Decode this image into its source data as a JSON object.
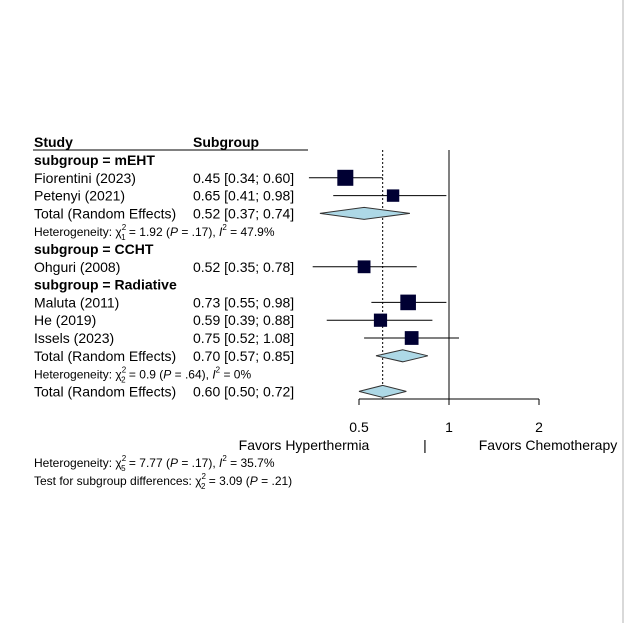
{
  "chart_data": {
    "type": "forest",
    "headers": {
      "study": "Study",
      "subgroup": "Subgroup"
    },
    "x_scale": "log",
    "x_ticks": [
      0.5,
      1,
      2
    ],
    "x_tick_labels": [
      "0.5",
      "1",
      "2"
    ],
    "null_line": 1,
    "overall_line": 0.6,
    "favors_left": "Favors Hyperthermia",
    "favors_separator": "|",
    "favors_right": "Favors Chemotherapy",
    "rows": [
      {
        "kind": "group",
        "label": "subgroup = mEHT"
      },
      {
        "kind": "study",
        "label": "Fiorentini (2023)",
        "est": 0.45,
        "lo": 0.34,
        "hi": 0.6,
        "ci_text": "0.45 [0.34; 0.60]",
        "weight": 1.0
      },
      {
        "kind": "study",
        "label": "Petenyi (2021)",
        "est": 0.65,
        "lo": 0.41,
        "hi": 0.98,
        "ci_text": "0.65 [0.41; 0.98]",
        "weight": 0.55
      },
      {
        "kind": "pooled",
        "label": "Total (Random Effects)",
        "est": 0.52,
        "lo": 0.37,
        "hi": 0.74,
        "ci_text": "0.52 [0.37; 0.74]"
      },
      {
        "kind": "het",
        "pre": "Heterogeneity: χ",
        "sub": "1",
        "sup": "2",
        "post": " = 1.92 (",
        "p": "P",
        "mid": " = .17), ",
        "i": "I",
        "isup": "2",
        "tail": " = 47.9%"
      },
      {
        "kind": "group",
        "label": "subgroup = CCHT"
      },
      {
        "kind": "study",
        "label": "Ohguri (2008)",
        "est": 0.52,
        "lo": 0.35,
        "hi": 0.78,
        "ci_text": "0.52 [0.35; 0.78]",
        "weight": 0.6
      },
      {
        "kind": "group",
        "label": "subgroup = Radiative"
      },
      {
        "kind": "study",
        "label": "Maluta (2011)",
        "est": 0.73,
        "lo": 0.55,
        "hi": 0.98,
        "ci_text": "0.73 [0.55; 0.98]",
        "weight": 0.95
      },
      {
        "kind": "study",
        "label": "He (2019)",
        "est": 0.59,
        "lo": 0.39,
        "hi": 0.88,
        "ci_text": "0.59 [0.39; 0.88]",
        "weight": 0.65
      },
      {
        "kind": "study",
        "label": "Issels (2023)",
        "est": 0.75,
        "lo": 0.52,
        "hi": 1.08,
        "ci_text": "0.75 [0.52; 1.08]",
        "weight": 0.72
      },
      {
        "kind": "pooled",
        "label": "Total (Random Effects)",
        "est": 0.7,
        "lo": 0.57,
        "hi": 0.85,
        "ci_text": "0.70 [0.57; 0.85]"
      },
      {
        "kind": "het",
        "pre": "Heterogeneity: χ",
        "sub": "2",
        "sup": "2",
        "post": " = 0.9 (",
        "p": "P",
        "mid": " = .64), ",
        "i": "I",
        "isup": "2",
        "tail": " = 0%"
      },
      {
        "kind": "pooled",
        "label": "Total (Random Effects)",
        "est": 0.6,
        "lo": 0.5,
        "hi": 0.72,
        "ci_text": "0.60 [0.50; 0.72]"
      }
    ],
    "footer": [
      {
        "kind": "het",
        "pre": "Heterogeneity: χ",
        "sub": "5",
        "sup": "2",
        "post": " = 7.77 (",
        "p": "P",
        "mid": " = .17), ",
        "i": "I",
        "isup": "2",
        "tail": " = 35.7%"
      },
      {
        "kind": "test",
        "pre": "Test for subgroup differences: χ",
        "sub": "2",
        "sup": "2",
        "post": " = 3.09 (",
        "p": "P",
        "tail": " = .21)"
      }
    ],
    "colors": {
      "marker": "#000033",
      "diamond_fill": "#add8e6",
      "diamond_stroke": "#333333",
      "ci_line": "#000000"
    }
  }
}
